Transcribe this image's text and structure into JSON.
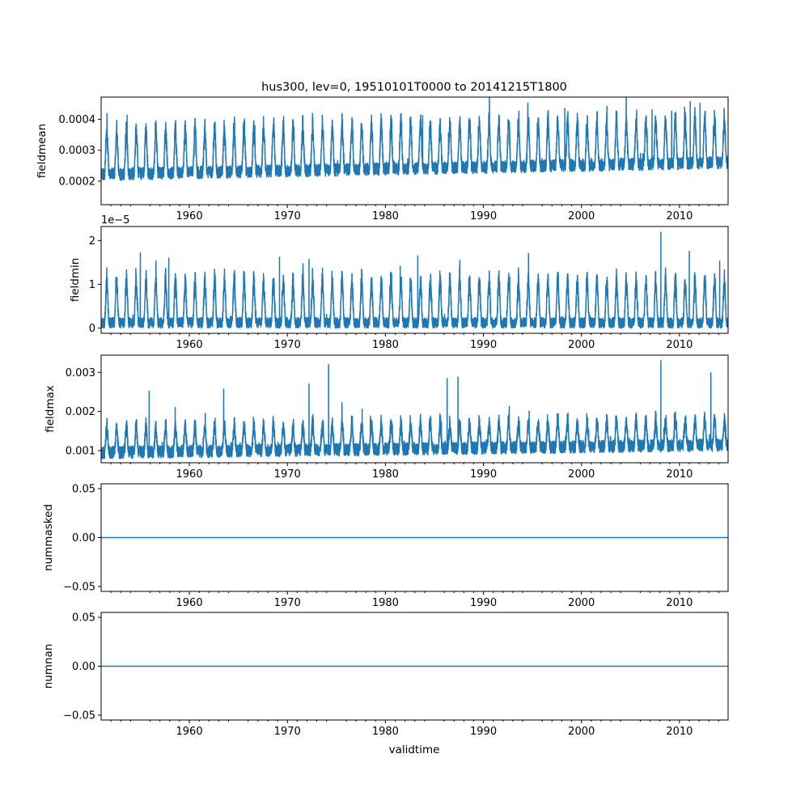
{
  "figure": {
    "title": "hus300, lev=0, 19510101T0000 to 20141215T1800",
    "xlabel": "validtime"
  },
  "colors": {
    "line": "#1f77b4",
    "axis": "#000000",
    "background": "#ffffff"
  },
  "chart_data": [
    {
      "type": "line",
      "ylabel": "fieldmean",
      "xlim": [
        1951.0,
        2014.96
      ],
      "xticks": [
        1960,
        1970,
        1980,
        1990,
        2000,
        2010
      ],
      "ylim": [
        0.000124,
        0.000472
      ],
      "yticks": [
        0.0002,
        0.0003,
        0.0004
      ],
      "ytick_labels": [
        "0.0002",
        "0.0003",
        "0.0004"
      ],
      "offset_text": "",
      "series": [
        {
          "name": "fieldmean",
          "signal": {
            "base": 0.000222,
            "amplitude": 0.000145,
            "noise": 2e-05,
            "trend": 6e-07,
            "peaks": [
              {
                "x": 2011.1,
                "y": 0.000458
              },
              {
                "x": 2012.1,
                "y": 0.000452
              },
              {
                "x": 1998.3,
                "y": 0.000435
              },
              {
                "x": 2007.2,
                "y": 0.000431
              },
              {
                "x": 2009.2,
                "y": 0.000427
              },
              {
                "x": 1983.8,
                "y": 0.000412
              }
            ]
          }
        }
      ]
    },
    {
      "type": "line",
      "ylabel": "fieldmin",
      "xlim": [
        1951.0,
        2014.96
      ],
      "xticks": [
        1960,
        1970,
        1980,
        1990,
        2000,
        2010
      ],
      "ylim": [
        -1.2e-06,
        2.32e-05
      ],
      "yticks": [
        0,
        1e-05,
        2e-05
      ],
      "ytick_labels": [
        "0",
        "1",
        "2"
      ],
      "offset_text": "1e−5",
      "series": [
        {
          "name": "fieldmin",
          "signal": {
            "base": 1.2e-06,
            "amplitude": 9.8e-06,
            "noise": 1.2e-06,
            "trend": 0,
            "peaks": [
              {
                "x": 2008.1,
                "y": 2.19e-05
              },
              {
                "x": 1955.0,
                "y": 1.72e-05
              },
              {
                "x": 2011.0,
                "y": 1.75e-05
              },
              {
                "x": 1969.2,
                "y": 1.62e-05
              },
              {
                "x": 1983.3,
                "y": 1.65e-05
              },
              {
                "x": 1957.9,
                "y": 1.6e-05
              },
              {
                "x": 1972.2,
                "y": 1.57e-05
              },
              {
                "x": 2014.1,
                "y": 1.53e-05
              }
            ]
          }
        }
      ]
    },
    {
      "type": "line",
      "ylabel": "fieldmax",
      "xlim": [
        1951.0,
        2014.96
      ],
      "xticks": [
        1960,
        1970,
        1980,
        1990,
        2000,
        2010
      ],
      "ylim": [
        0.00069,
        0.00344
      ],
      "yticks": [
        0.001,
        0.002,
        0.003
      ],
      "ytick_labels": [
        "0.001",
        "0.002",
        "0.003"
      ],
      "offset_text": "",
      "series": [
        {
          "name": "fieldmax",
          "signal": {
            "base": 0.00095,
            "amplitude": 0.00065,
            "noise": 0.00016,
            "trend": 3e-06,
            "peaks": [
              {
                "x": 2008.1,
                "y": 0.0033
              },
              {
                "x": 1974.2,
                "y": 0.0032
              },
              {
                "x": 2013.2,
                "y": 0.00299
              },
              {
                "x": 1987.4,
                "y": 0.00288
              },
              {
                "x": 1986.3,
                "y": 0.00284
              },
              {
                "x": 1972.2,
                "y": 0.0027
              },
              {
                "x": 1963.5,
                "y": 0.00257
              },
              {
                "x": 1955.9,
                "y": 0.00252
              }
            ]
          }
        }
      ]
    },
    {
      "type": "line",
      "ylabel": "nummasked",
      "xlim": [
        1951.0,
        2014.96
      ],
      "xticks": [
        1960,
        1970,
        1980,
        1990,
        2000,
        2010
      ],
      "ylim": [
        -0.055,
        0.055
      ],
      "yticks": [
        -0.05,
        0,
        0.05
      ],
      "ytick_labels": [
        "−0.05",
        "0.00",
        "0.05"
      ],
      "offset_text": "",
      "series": [
        {
          "name": "nummasked",
          "x": [
            1951.0,
            2014.96
          ],
          "y": [
            0,
            0
          ]
        }
      ]
    },
    {
      "type": "line",
      "ylabel": "numnan",
      "xlim": [
        1951.0,
        2014.96
      ],
      "xticks": [
        1960,
        1970,
        1980,
        1990,
        2000,
        2010
      ],
      "ylim": [
        -0.055,
        0.055
      ],
      "yticks": [
        -0.05,
        0,
        0.05
      ],
      "ytick_labels": [
        "−0.05",
        "0.00",
        "0.05"
      ],
      "offset_text": "",
      "series": [
        {
          "name": "numnan",
          "x": [
            1951.0,
            2014.96
          ],
          "y": [
            0,
            0
          ]
        }
      ]
    }
  ]
}
